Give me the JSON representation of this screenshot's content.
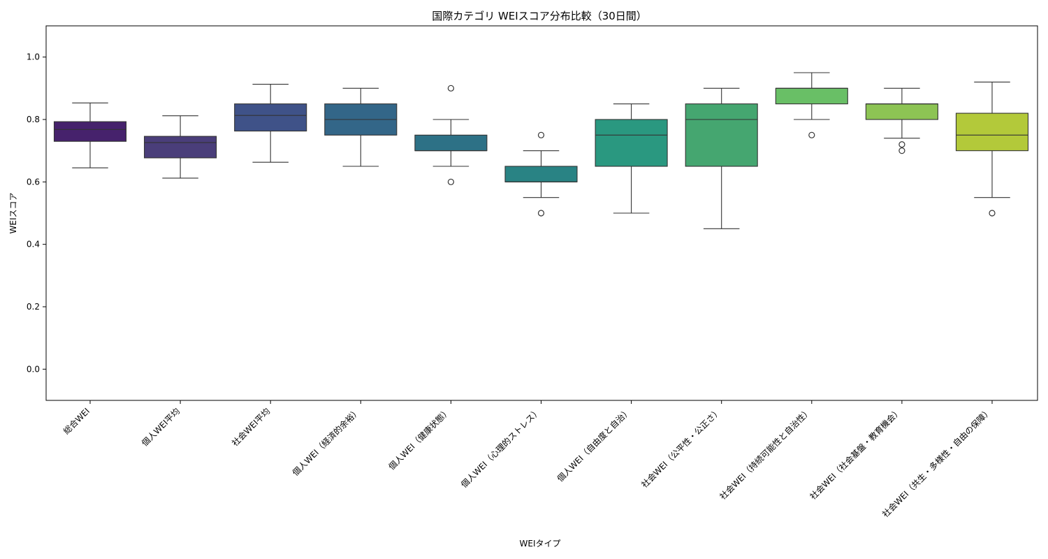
{
  "chart_data": {
    "type": "box",
    "title": "国際カテゴリ WEIスコア分布比較（30日間）",
    "xlabel": "WEIタイプ",
    "ylabel": "WEIスコア",
    "ylim": [
      -0.1,
      1.1
    ],
    "yticks": [
      "0.0",
      "0.2",
      "0.4",
      "0.6",
      "0.8",
      "1.0"
    ],
    "ytick_values": [
      0.0,
      0.2,
      0.4,
      0.6,
      0.8,
      1.0
    ],
    "grid": false,
    "palette": "viridis",
    "boxes": [
      {
        "category": "総合WEI",
        "whisker_low": 0.645,
        "q1": 0.73,
        "median": 0.768,
        "q3": 0.793,
        "whisker_high": 0.853,
        "outliers": [],
        "color": "#46226c"
      },
      {
        "category": "個人WEI平均",
        "whisker_low": 0.612,
        "q1": 0.677,
        "median": 0.726,
        "q3": 0.746,
        "whisker_high": 0.812,
        "outliers": [],
        "color": "#4a3e7a"
      },
      {
        "category": "社会WEI平均",
        "whisker_low": 0.663,
        "q1": 0.763,
        "median": 0.813,
        "q3": 0.85,
        "whisker_high": 0.913,
        "outliers": [],
        "color": "#3f5288"
      },
      {
        "category": "個人WEI（経済的余裕）",
        "whisker_low": 0.65,
        "q1": 0.75,
        "median": 0.8,
        "q3": 0.85,
        "whisker_high": 0.9,
        "outliers": [],
        "color": "#336688"
      },
      {
        "category": "個人WEI（健康状態）",
        "whisker_low": 0.65,
        "q1": 0.7,
        "median": 0.7,
        "q3": 0.75,
        "whisker_high": 0.8,
        "outliers": [
          0.6,
          0.9
        ],
        "color": "#2d7186"
      },
      {
        "category": "個人WEI（心理的ストレス）",
        "whisker_low": 0.55,
        "q1": 0.6,
        "median": 0.6,
        "q3": 0.65,
        "whisker_high": 0.7,
        "outliers": [
          0.5,
          0.75
        ],
        "color": "#298384"
      },
      {
        "category": "個人WEI（自由度と自治）",
        "whisker_low": 0.5,
        "q1": 0.65,
        "median": 0.75,
        "q3": 0.8,
        "whisker_high": 0.85,
        "outliers": [],
        "color": "#2a9880"
      },
      {
        "category": "社会WEI（公平性・公正さ）",
        "whisker_low": 0.45,
        "q1": 0.65,
        "median": 0.8,
        "q3": 0.85,
        "whisker_high": 0.9,
        "outliers": [],
        "color": "#45a670"
      },
      {
        "category": "社会WEI（持続可能性と自治性）",
        "whisker_low": 0.8,
        "q1": 0.85,
        "median": 0.9,
        "q3": 0.9,
        "whisker_high": 0.95,
        "outliers": [
          0.75
        ],
        "color": "#69bf66"
      },
      {
        "category": "社会WEI（社会基盤・教育機会）",
        "whisker_low": 0.74,
        "q1": 0.8,
        "median": 0.85,
        "q3": 0.85,
        "whisker_high": 0.9,
        "outliers": [
          0.7,
          0.72
        ],
        "color": "#8dc454"
      },
      {
        "category": "社会WEI（共生・多様性・自由の保障）",
        "whisker_low": 0.55,
        "q1": 0.7,
        "median": 0.75,
        "q3": 0.82,
        "whisker_high": 0.92,
        "outliers": [
          0.5
        ],
        "color": "#b3c93a"
      }
    ]
  }
}
